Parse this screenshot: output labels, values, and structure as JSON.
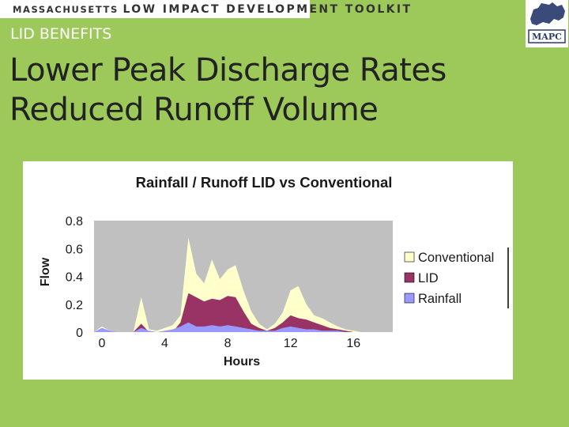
{
  "header": {
    "banner_state": "MASSACHUSETTS",
    "banner_toolkit": "LOW IMPACT DEVELOPMENT TOOLKIT",
    "logo_text": "MAPC"
  },
  "slide": {
    "section": "LID BENEFITS",
    "title_line1": "Lower Peak Discharge Rates",
    "title_line2": "Reduced Runoff Volume"
  },
  "colors": {
    "background": "#9dc95a",
    "plot_area": "#c0c0c0",
    "conventional": "#ffffcc",
    "lid": "#993366",
    "rainfall": "#9999ff"
  },
  "chart_data": {
    "type": "area",
    "title": "Rainfall / Runoff LID vs Conventional",
    "xlabel": "Hours",
    "ylabel": "Flow",
    "xlim": [
      -0.5,
      18.5
    ],
    "ylim": [
      0,
      0.8
    ],
    "x_ticks": [
      0,
      4,
      8,
      12,
      16
    ],
    "y_ticks": [
      0,
      0.2,
      0.4,
      0.6,
      0.8
    ],
    "grid": false,
    "legend_position": "right",
    "x": [
      -0.5,
      0,
      0.5,
      1,
      1.5,
      2,
      2.5,
      3,
      3.5,
      4,
      4.5,
      5,
      5.5,
      6,
      6.5,
      7,
      7.5,
      8,
      8.5,
      9,
      9.5,
      10,
      10.5,
      11,
      11.5,
      12,
      12.5,
      13,
      13.5,
      14,
      14.5,
      15,
      15.5,
      16,
      16.5,
      17,
      17.5,
      18,
      18.5
    ],
    "series": [
      {
        "name": "Conventional",
        "color": "#ffffcc",
        "values": [
          0,
          0.04,
          0.01,
          0,
          0,
          0,
          0.25,
          0.02,
          0.01,
          0.03,
          0.05,
          0.12,
          0.68,
          0.42,
          0.35,
          0.52,
          0.38,
          0.45,
          0.48,
          0.3,
          0.15,
          0.06,
          0.02,
          0.06,
          0.14,
          0.3,
          0.33,
          0.2,
          0.12,
          0.1,
          0.07,
          0.04,
          0.02,
          0.01,
          0,
          0,
          0,
          0,
          0
        ]
      },
      {
        "name": "LID",
        "color": "#993366",
        "values": [
          0,
          0.02,
          0,
          0,
          0,
          0,
          0.06,
          0,
          0,
          0,
          0,
          0.07,
          0.28,
          0.25,
          0.22,
          0.24,
          0.23,
          0.26,
          0.25,
          0.15,
          0.06,
          0.03,
          0.01,
          0.03,
          0.07,
          0.12,
          0.1,
          0.09,
          0.07,
          0.05,
          0.03,
          0.02,
          0.01,
          0,
          0,
          0,
          0,
          0,
          0
        ]
      },
      {
        "name": "Rainfall",
        "color": "#9999ff",
        "values": [
          0,
          0.03,
          0.01,
          0,
          0,
          0,
          0.03,
          0.01,
          0,
          0.01,
          0.02,
          0.04,
          0.07,
          0.04,
          0.04,
          0.05,
          0.04,
          0.05,
          0.04,
          0.03,
          0.02,
          0.01,
          0.01,
          0.01,
          0.03,
          0.04,
          0.03,
          0.02,
          0.02,
          0.01,
          0.01,
          0.01,
          0,
          0,
          0,
          0,
          0,
          0,
          0
        ]
      }
    ]
  }
}
